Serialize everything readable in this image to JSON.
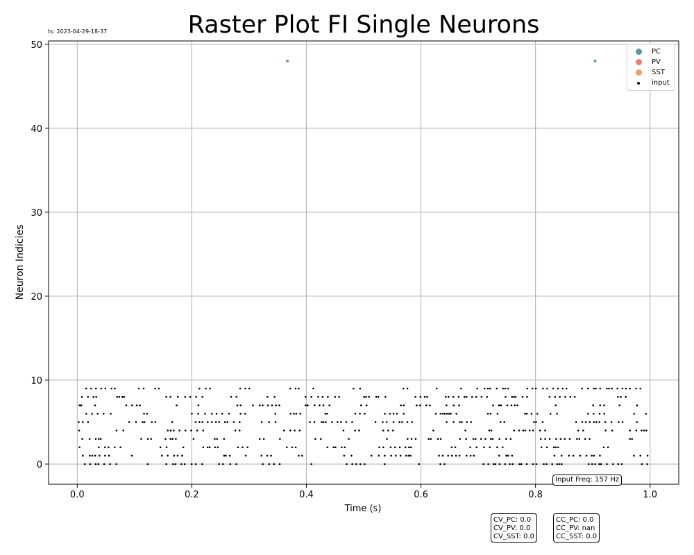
{
  "chart_data": {
    "type": "scatter",
    "title": "Raster Plot FI Single Neurons",
    "timestamp": "ts: 2023-04-29-18-37",
    "xlabel": "Time (s)",
    "ylabel": "Neuron Indicies",
    "xlim": [
      -0.05,
      1.05
    ],
    "ylim": [
      -2.4,
      50.4
    ],
    "xticks": [
      0.0,
      0.2,
      0.4,
      0.6,
      0.8,
      1.0
    ],
    "xtick_labels": [
      "0.0",
      "0.2",
      "0.4",
      "0.6",
      "0.8",
      "1.0"
    ],
    "yticks": [
      0,
      10,
      20,
      30,
      40,
      50
    ],
    "ytick_labels": [
      "0",
      "10",
      "20",
      "30",
      "40",
      "50"
    ],
    "grid": true,
    "legend_placement": "top-right",
    "series": [
      {
        "name": "PC",
        "color": "#5b9a9e",
        "points": [
          [
            0.367,
            48
          ],
          [
            0.904,
            48
          ]
        ]
      },
      {
        "name": "PV",
        "color": "#e88077",
        "points": []
      },
      {
        "name": "SST",
        "color": "#efa064",
        "points": []
      },
      {
        "name": "input",
        "color": "#000000",
        "neurons": [
          0,
          1,
          2,
          3,
          4,
          5,
          6,
          7,
          8,
          9
        ],
        "time_range": [
          0.0,
          1.0
        ],
        "rate_hz": 157,
        "note_points": "dense random spike trains for neurons 0-9"
      }
    ],
    "annotations": {
      "input_freq": "Input Freq: 157 Hz",
      "cv": [
        "CV_PC: 0.0",
        "CV_PV: 0.0",
        "CV_SST: 0.0"
      ],
      "cc": [
        "CC_PC: 0.0",
        "CC_PV: nan",
        "CC_SST: 0.0"
      ]
    }
  }
}
